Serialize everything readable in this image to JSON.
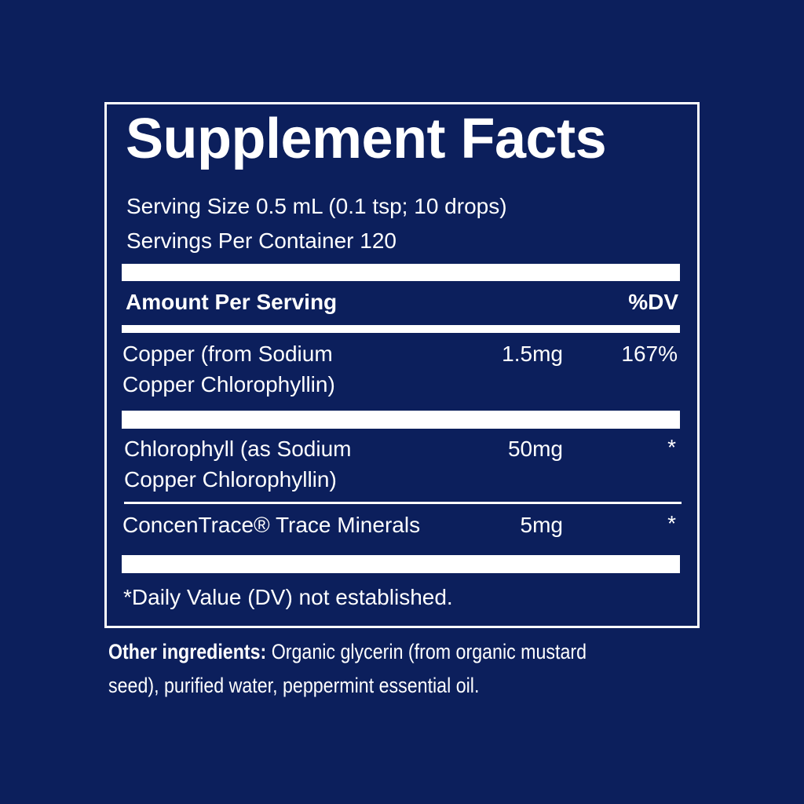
{
  "label": {
    "title": "Supplement Facts",
    "serving_size": "Serving Size 0.5 mL (0.1 tsp; 10 drops)",
    "servings_per_container": "Servings Per Container 120",
    "header": {
      "amount": "Amount Per Serving",
      "dv": "%DV"
    },
    "rows": [
      {
        "name_line1": "Copper (from Sodium",
        "name_line2": "Copper Chlorophyllin)",
        "amount": "1.5mg",
        "dv": "167%"
      },
      {
        "name_line1": "Chlorophyll (as Sodium",
        "name_line2": "Copper Chlorophyllin)",
        "amount": "50mg",
        "dv": "*"
      },
      {
        "name_line1": "ConcenTrace® Trace Minerals",
        "amount": "5mg",
        "dv": "*"
      }
    ],
    "footnote": "*Daily Value (DV) not established."
  },
  "other_ingredients": {
    "label": "Other ingredients:",
    "text_line1": " Organic glycerin (from organic mustard",
    "text_line2": "seed), purified water, peppermint essential oil."
  },
  "colors": {
    "background": "#0c1f5c",
    "foreground": "#ffffff"
  }
}
